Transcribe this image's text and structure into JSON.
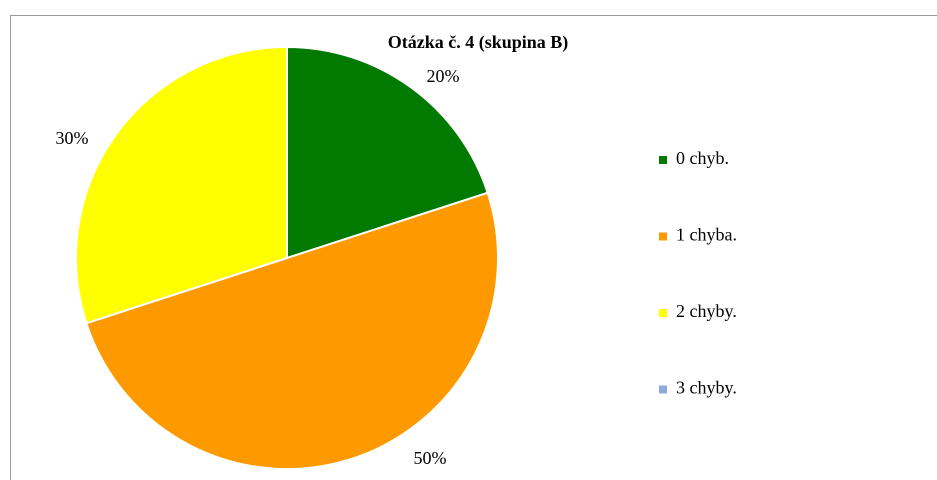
{
  "chart_data": {
    "type": "pie",
    "title": "Otázka č. 4 (skupina B)",
    "categories": [
      "0 chyb.",
      "1 chyba.",
      "2 chyby.",
      "3 chyby."
    ],
    "values": [
      20,
      50,
      30,
      0
    ],
    "value_labels": [
      "20%",
      "50%",
      "30%",
      null
    ],
    "colors": [
      "#007a00",
      "#ff9900",
      "#ffff00",
      "#8eaadb"
    ],
    "legend": "right"
  }
}
